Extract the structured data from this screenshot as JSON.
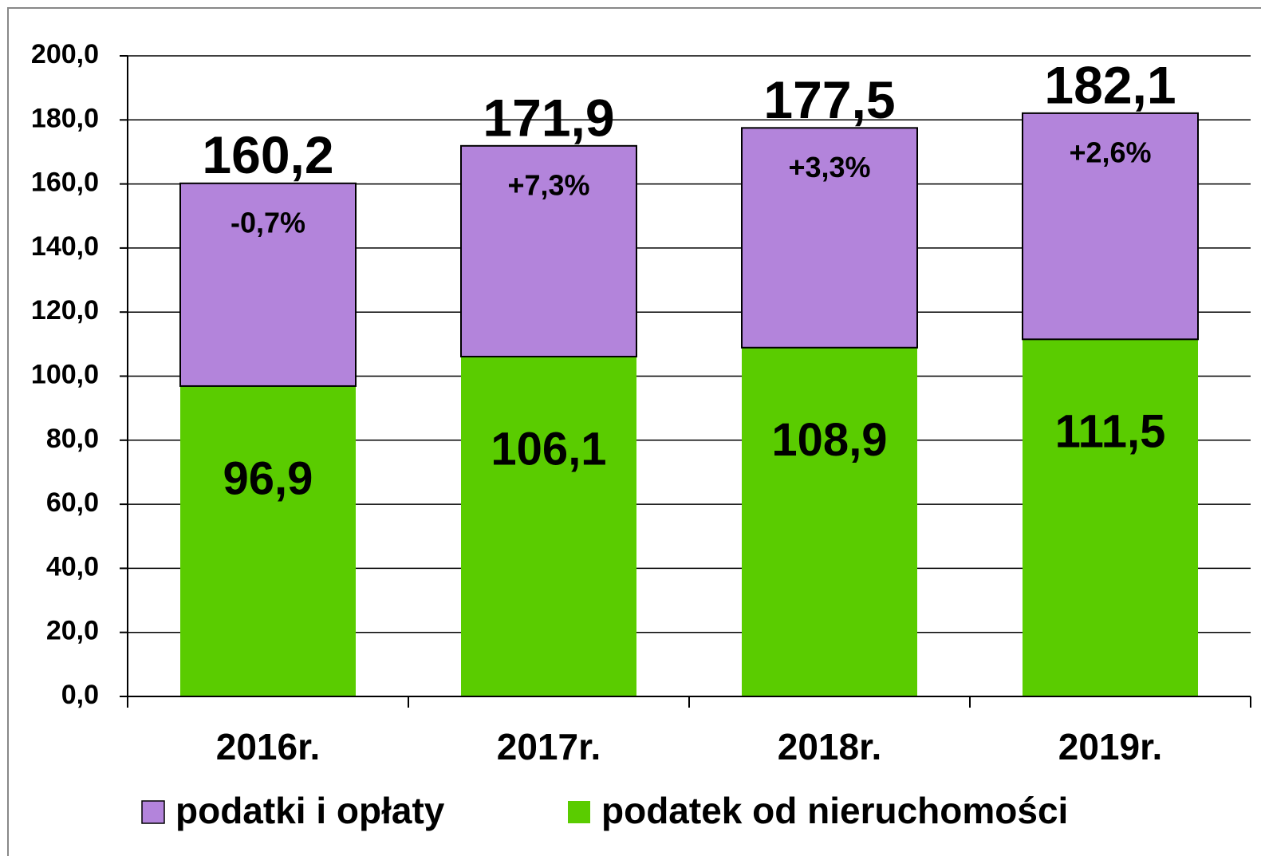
{
  "chart_data": {
    "type": "stacked_bar",
    "categories": [
      "2016r.",
      "2017r.",
      "2018r.",
      "2019r."
    ],
    "series": [
      {
        "name": "podatek od nieruchomości",
        "color": "#5acc00",
        "values": [
          96.9,
          106.1,
          108.9,
          111.5
        ],
        "value_labels": [
          "96,9",
          "106,1",
          "108,9",
          "111,5"
        ]
      },
      {
        "name": "podatki i opłaty",
        "color": "#b384db",
        "values": [
          63.3,
          65.8,
          68.6,
          70.6
        ]
      }
    ],
    "totals": [
      160.2,
      171.9,
      177.5,
      182.1
    ],
    "total_labels": [
      "160,2",
      "171,9",
      "177,5",
      "182,1"
    ],
    "growth_labels": [
      "-0,7%",
      "+7,3%",
      "+3,3%",
      "+2,6%"
    ],
    "ylim": [
      0,
      200
    ],
    "yticks": [
      {
        "value": 0,
        "label": "0,0"
      },
      {
        "value": 20,
        "label": "20,0"
      },
      {
        "value": 40,
        "label": "40,0"
      },
      {
        "value": 60,
        "label": "60,0"
      },
      {
        "value": 80,
        "label": "80,0"
      },
      {
        "value": 100,
        "label": "100,0"
      },
      {
        "value": 120,
        "label": "120,0"
      },
      {
        "value": 140,
        "label": "140,0"
      },
      {
        "value": 160,
        "label": "160,0"
      },
      {
        "value": 180,
        "label": "180,0"
      },
      {
        "value": 200,
        "label": "200,0"
      }
    ],
    "grid": true,
    "legend": "bottom"
  }
}
